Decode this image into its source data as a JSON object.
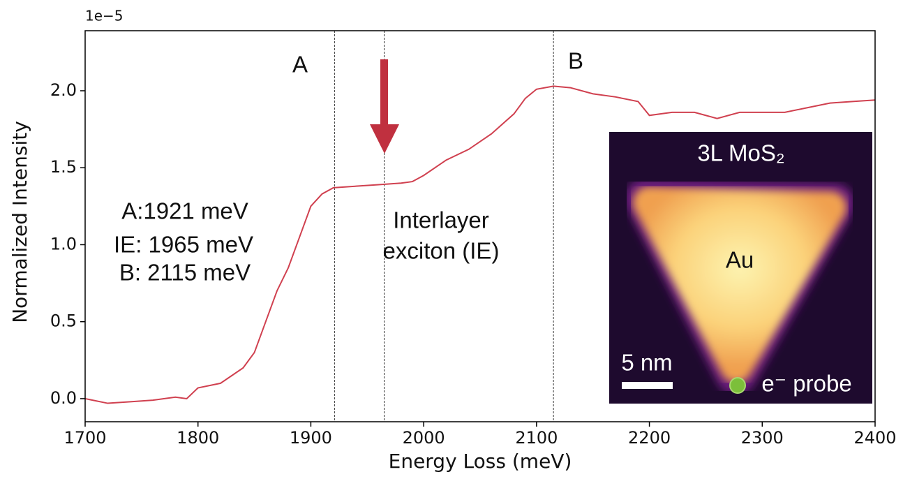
{
  "chart_data": {
    "type": "line",
    "x_label": "Energy Loss (meV)",
    "y_label": "Normalized Intensity",
    "y_offset_label": "1e−5",
    "x": [
      1700,
      1720,
      1740,
      1760,
      1780,
      1790,
      1800,
      1820,
      1840,
      1850,
      1860,
      1870,
      1880,
      1890,
      1900,
      1910,
      1920,
      1940,
      1960,
      1980,
      1990,
      2000,
      2020,
      2040,
      2060,
      2080,
      2090,
      2100,
      2115,
      2130,
      2150,
      2170,
      2190,
      2200,
      2220,
      2240,
      2260,
      2280,
      2300,
      2320,
      2340,
      2360,
      2380,
      2400
    ],
    "series": [
      {
        "color": "#d0404f",
        "values": [
          0.0,
          -0.03,
          -0.02,
          -0.01,
          0.01,
          0.0,
          0.07,
          0.1,
          0.2,
          0.3,
          0.5,
          0.7,
          0.85,
          1.05,
          1.25,
          1.33,
          1.37,
          1.38,
          1.39,
          1.4,
          1.41,
          1.45,
          1.55,
          1.62,
          1.72,
          1.85,
          1.95,
          2.01,
          2.03,
          2.02,
          1.98,
          1.96,
          1.93,
          1.84,
          1.86,
          1.86,
          1.82,
          1.86,
          1.86,
          1.86,
          1.89,
          1.92,
          1.93,
          1.94
        ]
      }
    ],
    "xlim": [
      1700,
      2400
    ],
    "xticks": [
      1700,
      1800,
      1900,
      2000,
      2100,
      2200,
      2300,
      2400
    ],
    "ylim": [
      -0.15,
      2.39
    ],
    "yticks": [
      {
        "value": 0,
        "label": "0.0"
      },
      {
        "value": 0.5,
        "label": "0.5"
      },
      {
        "value": 1,
        "label": "1.0"
      },
      {
        "value": 1.5,
        "label": "1.5"
      },
      {
        "value": 2,
        "label": "2.0"
      }
    ],
    "vlines": [
      1921,
      1965,
      2115
    ],
    "annotations": {
      "peak_a": "A",
      "peak_b": "B",
      "list": [
        "A:1921 meV",
        "IE: 1965 meV",
        "B: 2115 meV"
      ],
      "ie": [
        "Interlayer",
        "exciton (IE)"
      ]
    },
    "inset": {
      "title": "3L MoS₂",
      "particle": "Au",
      "scale": "5 nm",
      "probe": "e⁻ probe"
    }
  }
}
